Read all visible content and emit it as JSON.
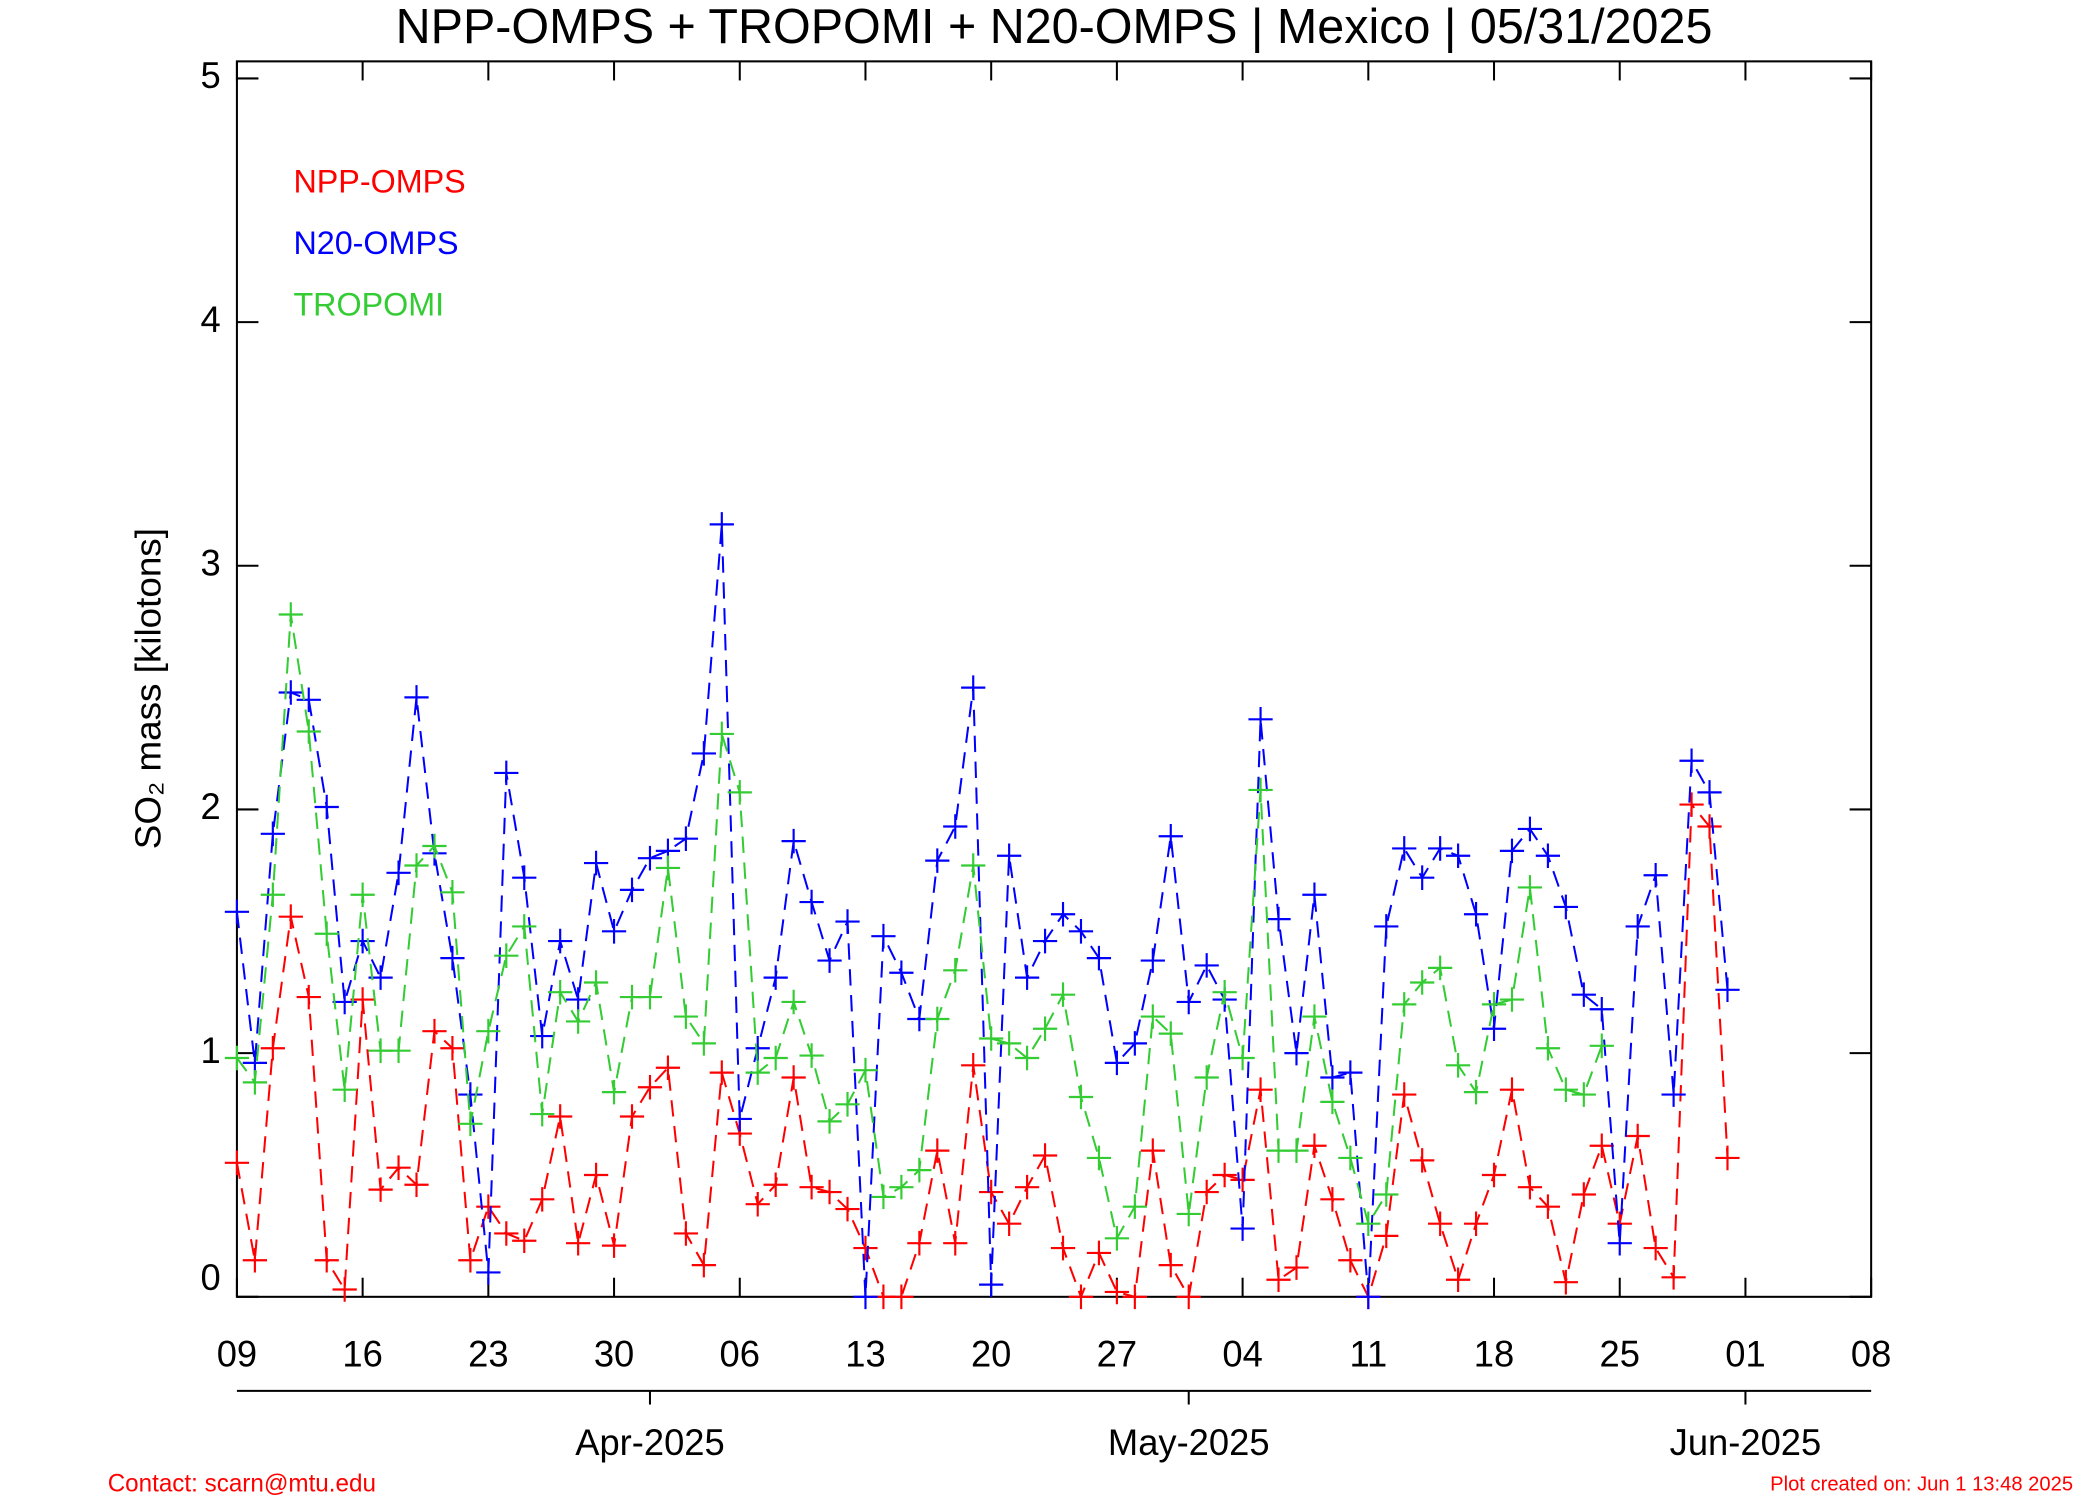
{
  "chart_data": {
    "type": "line",
    "title": "NPP-OMPS + TROPOMI + N20-OMPS | Mexico | 05/31/2025",
    "y_label": "SO₂ mass [kilotons]",
    "contact": "Contact: scarn@mtu.edu",
    "created": "Plot created on: Jun  1 13:48 2025",
    "x": [
      "2025-03-09",
      "2025-03-10",
      "2025-03-11",
      "2025-03-12",
      "2025-03-13",
      "2025-03-14",
      "2025-03-15",
      "2025-03-16",
      "2025-03-17",
      "2025-03-18",
      "2025-03-19",
      "2025-03-20",
      "2025-03-21",
      "2025-03-22",
      "2025-03-23",
      "2025-03-24",
      "2025-03-25",
      "2025-03-26",
      "2025-03-27",
      "2025-03-28",
      "2025-03-29",
      "2025-03-30",
      "2025-03-31",
      "2025-04-01",
      "2025-04-02",
      "2025-04-03",
      "2025-04-04",
      "2025-04-05",
      "2025-04-06",
      "2025-04-07",
      "2025-04-08",
      "2025-04-09",
      "2025-04-10",
      "2025-04-11",
      "2025-04-12",
      "2025-04-13",
      "2025-04-14",
      "2025-04-15",
      "2025-04-16",
      "2025-04-17",
      "2025-04-18",
      "2025-04-19",
      "2025-04-20",
      "2025-04-21",
      "2025-04-22",
      "2025-04-23",
      "2025-04-24",
      "2025-04-25",
      "2025-04-26",
      "2025-04-27",
      "2025-04-28",
      "2025-04-29",
      "2025-04-30",
      "2025-05-01",
      "2025-05-02",
      "2025-05-03",
      "2025-05-04",
      "2025-05-05",
      "2025-05-06",
      "2025-05-07",
      "2025-05-08",
      "2025-05-09",
      "2025-05-10",
      "2025-05-11",
      "2025-05-12",
      "2025-05-13",
      "2025-05-14",
      "2025-05-15",
      "2025-05-16",
      "2025-05-17",
      "2025-05-18",
      "2025-05-19",
      "2025-05-20",
      "2025-05-21",
      "2025-05-22",
      "2025-05-23",
      "2025-05-24",
      "2025-05-25",
      "2025-05-26",
      "2025-05-27",
      "2025-05-28",
      "2025-05-29",
      "2025-05-30",
      "2025-05-31"
    ],
    "series": [
      {
        "name": "NPP-OMPS",
        "color": "#ff0000",
        "values": [
          0.55,
          0.15,
          1.02,
          1.56,
          1.23,
          0.15,
          0.03,
          1.22,
          0.44,
          0.53,
          0.46,
          1.09,
          1.02,
          0.15,
          0.37,
          0.26,
          0.23,
          0.4,
          0.74,
          0.22,
          0.5,
          0.21,
          0.74,
          0.86,
          0.94,
          0.26,
          0.13,
          0.92,
          0.67,
          0.38,
          0.46,
          0.9,
          0.45,
          0.43,
          0.36,
          0.2,
          0.0,
          0.0,
          0.22,
          0.6,
          0.22,
          0.95,
          0.43,
          0.3,
          0.45,
          0.58,
          0.2,
          0.0,
          0.18,
          0.02,
          0.0,
          0.6,
          0.13,
          0.0,
          0.43,
          0.5,
          0.48,
          0.85,
          0.07,
          0.12,
          0.62,
          0.4,
          0.15,
          0.0,
          0.25,
          0.83,
          0.56,
          0.3,
          0.07,
          0.3,
          0.5,
          0.85,
          0.45,
          0.37,
          0.06,
          0.42,
          0.62,
          0.3,
          0.66,
          0.2,
          0.08,
          2.02,
          1.93,
          0.57
        ]
      },
      {
        "name": "N20-OMPS",
        "color": "#0000ff",
        "values": [
          1.58,
          0.96,
          1.9,
          2.48,
          2.45,
          2.01,
          1.21,
          1.46,
          1.31,
          1.74,
          2.46,
          1.82,
          1.39,
          0.83,
          0.1,
          2.15,
          1.72,
          1.07,
          1.46,
          1.22,
          1.78,
          1.5,
          1.67,
          1.8,
          1.83,
          1.88,
          2.23,
          3.17,
          0.73,
          1.02,
          1.31,
          1.87,
          1.62,
          1.38,
          1.54,
          0.0,
          1.48,
          1.33,
          1.14,
          1.79,
          1.93,
          2.5,
          0.05,
          1.81,
          1.31,
          1.46,
          1.57,
          1.5,
          1.39,
          0.96,
          1.04,
          1.38,
          1.89,
          1.21,
          1.36,
          1.22,
          0.28,
          2.37,
          1.55,
          1.0,
          1.65,
          0.9,
          0.92,
          0.0,
          1.52,
          1.84,
          1.72,
          1.84,
          1.81,
          1.57,
          1.1,
          1.83,
          1.92,
          1.81,
          1.6,
          1.24,
          1.18,
          0.22,
          1.52,
          1.73,
          0.83,
          2.2,
          2.07,
          1.26
        ]
      },
      {
        "name": "TROPOMI",
        "color": "#33cc33",
        "values": [
          0.98,
          0.88,
          1.65,
          2.8,
          2.32,
          1.49,
          0.85,
          1.65,
          1.01,
          1.01,
          1.77,
          1.85,
          1.66,
          0.71,
          1.09,
          1.4,
          1.52,
          0.75,
          1.25,
          1.13,
          1.29,
          0.84,
          1.23,
          1.23,
          1.76,
          1.15,
          1.04,
          2.31,
          2.07,
          0.92,
          0.98,
          1.21,
          0.99,
          0.72,
          0.79,
          0.93,
          0.41,
          0.45,
          0.52,
          1.14,
          1.34,
          1.77,
          1.06,
          1.04,
          0.98,
          1.1,
          1.24,
          0.82,
          0.57,
          0.24,
          0.37,
          1.15,
          1.08,
          0.34,
          0.9,
          1.25,
          0.98,
          2.08,
          0.6,
          0.6,
          1.15,
          0.8,
          0.57,
          0.3,
          0.42,
          1.2,
          1.29,
          1.35,
          0.95,
          0.84,
          1.2,
          1.22,
          1.68,
          1.02,
          0.85,
          0.83,
          1.03,
          null,
          null,
          null,
          null,
          null,
          null,
          null
        ]
      }
    ],
    "xlim": [
      "2025-03-09",
      "2025-06-08"
    ],
    "xticks": [
      {
        "value": "2025-03-09",
        "label": "09"
      },
      {
        "value": "2025-03-16",
        "label": "16"
      },
      {
        "value": "2025-03-23",
        "label": "23"
      },
      {
        "value": "2025-03-30",
        "label": "30"
      },
      {
        "value": "2025-04-06",
        "label": "06"
      },
      {
        "value": "2025-04-13",
        "label": "13"
      },
      {
        "value": "2025-04-20",
        "label": "20"
      },
      {
        "value": "2025-04-27",
        "label": "27"
      },
      {
        "value": "2025-05-04",
        "label": "04"
      },
      {
        "value": "2025-05-11",
        "label": "11"
      },
      {
        "value": "2025-05-18",
        "label": "18"
      },
      {
        "value": "2025-05-25",
        "label": "25"
      },
      {
        "value": "2025-06-01",
        "label": "01"
      },
      {
        "value": "2025-06-08",
        "label": "08"
      }
    ],
    "month_ticks": [
      {
        "value": "2025-04-01",
        "label": "Apr-2025"
      },
      {
        "value": "2025-05-01",
        "label": "May-2025"
      },
      {
        "value": "2025-06-01",
        "label": "Jun-2025"
      }
    ],
    "ylim": [
      0,
      5.07
    ],
    "yticks": [
      0,
      1,
      2,
      3,
      4,
      5
    ]
  }
}
